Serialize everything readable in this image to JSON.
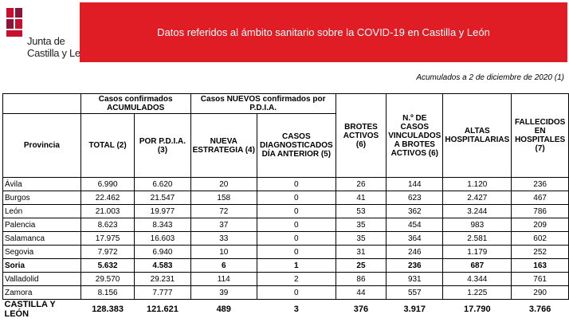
{
  "header": {
    "logo": [
      "Junta de",
      "Castilla y León"
    ],
    "title": "Datos referidos al ámbito sanitario sobre la COVID-19 en Castilla y León",
    "note": "Acumulados a 2 de diciembre de 2020 (1)"
  },
  "table": {
    "groups": [
      "Casos confirmados ACUMULADOS",
      "Casos NUEVOS confirmados por P.D.I.A."
    ],
    "columns": [
      "Provincia",
      "TOTAL (2)",
      "POR P.D.I.A. (3)",
      "NUEVA ESTRATEGIA (4)",
      "CASOS DIAGNOSTICADOS DÍA ANTERIOR (5)",
      "BROTES ACTIVOS (6)",
      "N.º DE CASOS VINCULADOS A BROTES ACTIVOS (6)",
      "ALTAS HOSPITALARIAS",
      "FALLECIDOS EN HOSPITALES (7)"
    ],
    "rows": [
      [
        "Ávila",
        "6.990",
        "6.620",
        "20",
        "0",
        "26",
        "144",
        "1.120",
        "236"
      ],
      [
        "Burgos",
        "22.462",
        "21.547",
        "158",
        "0",
        "41",
        "623",
        "2.427",
        "467"
      ],
      [
        "León",
        "21.003",
        "19.977",
        "72",
        "0",
        "53",
        "362",
        "3.244",
        "786"
      ],
      [
        "Palencia",
        "8.623",
        "8.343",
        "37",
        "0",
        "35",
        "454",
        "983",
        "209"
      ],
      [
        "Salamanca",
        "17.975",
        "16.603",
        "33",
        "0",
        "35",
        "364",
        "2.581",
        "602"
      ],
      [
        "Segovia",
        "7.972",
        "6.940",
        "10",
        "0",
        "31",
        "246",
        "1.179",
        "252"
      ],
      [
        "Soria",
        "5.632",
        "4.583",
        "6",
        "1",
        "25",
        "236",
        "687",
        "163"
      ],
      [
        "Valladolid",
        "29.570",
        "29.231",
        "114",
        "2",
        "86",
        "931",
        "4.344",
        "761"
      ],
      [
        "Zamora",
        "8.156",
        "7.777",
        "39",
        "0",
        "44",
        "557",
        "1.225",
        "290"
      ]
    ],
    "bold_rows": [
      6
    ],
    "total": [
      "CASTILLA Y LEÓN",
      "128.383",
      "121.621",
      "489",
      "3",
      "376",
      "3.917",
      "17.790",
      "3.766"
    ]
  }
}
